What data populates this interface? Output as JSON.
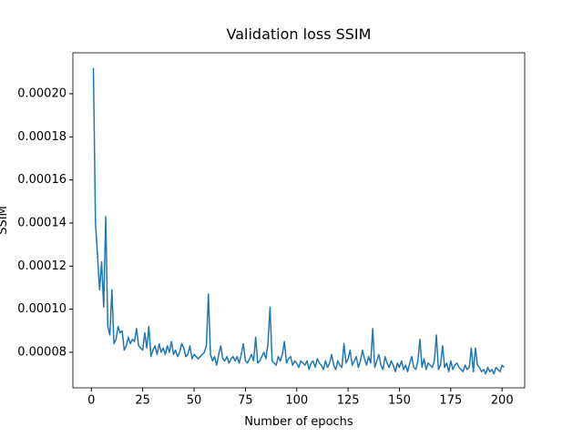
{
  "chart_data": {
    "type": "line",
    "title": "Validation loss SSIM",
    "x_label": "Number of epochs",
    "y_label": "SSIM",
    "x": [
      1,
      2,
      3,
      4,
      5,
      6,
      7,
      8,
      9,
      10,
      11,
      12,
      13,
      14,
      15,
      16,
      17,
      18,
      19,
      20,
      21,
      22,
      23,
      24,
      25,
      26,
      27,
      28,
      29,
      30,
      31,
      32,
      33,
      34,
      35,
      36,
      37,
      38,
      39,
      40,
      41,
      42,
      43,
      44,
      45,
      46,
      47,
      48,
      49,
      50,
      51,
      52,
      53,
      54,
      55,
      56,
      57,
      58,
      59,
      60,
      61,
      62,
      63,
      64,
      65,
      66,
      67,
      68,
      69,
      70,
      71,
      72,
      73,
      74,
      75,
      76,
      77,
      78,
      79,
      80,
      81,
      82,
      83,
      84,
      85,
      86,
      87,
      88,
      89,
      90,
      91,
      92,
      93,
      94,
      95,
      96,
      97,
      98,
      99,
      100,
      101,
      102,
      103,
      104,
      105,
      106,
      107,
      108,
      109,
      110,
      111,
      112,
      113,
      114,
      115,
      116,
      117,
      118,
      119,
      120,
      121,
      122,
      123,
      124,
      125,
      126,
      127,
      128,
      129,
      130,
      131,
      132,
      133,
      134,
      135,
      136,
      137,
      138,
      139,
      140,
      141,
      142,
      143,
      144,
      145,
      146,
      147,
      148,
      149,
      150,
      151,
      152,
      153,
      154,
      155,
      156,
      157,
      158,
      159,
      160,
      161,
      162,
      163,
      164,
      165,
      166,
      167,
      168,
      169,
      170,
      171,
      172,
      173,
      174,
      175,
      176,
      177,
      178,
      179,
      180,
      181,
      182,
      183,
      184,
      185,
      186,
      187,
      188,
      189,
      190,
      191,
      192,
      193,
      194,
      195,
      196,
      197,
      198,
      199,
      200,
      201
    ],
    "series": [
      {
        "color": "#1f77b4",
        "values": [
          0.000212,
          0.00014,
          0.000125,
          0.000109,
          0.000122,
          0.000101,
          0.000143,
          9.2e-05,
          8.8e-05,
          0.000109,
          8.4e-05,
          8.6e-05,
          9.2e-05,
          8.9e-05,
          9e-05,
          8.1e-05,
          8.3e-05,
          8.7e-05,
          8.4e-05,
          8.6e-05,
          8.5e-05,
          9.1e-05,
          8.3e-05,
          8.2e-05,
          8.1e-05,
          8.9e-05,
          8.2e-05,
          9.2e-05,
          7.8e-05,
          8.1e-05,
          8.3e-05,
          7.9e-05,
          8.4e-05,
          8e-05,
          8.2e-05,
          7.9e-05,
          8.3e-05,
          8e-05,
          8.5e-05,
          7.9e-05,
          8.1e-05,
          7.8e-05,
          8e-05,
          8.4e-05,
          8.2e-05,
          7.8e-05,
          7.9e-05,
          8.3e-05,
          7.7e-05,
          7.9e-05,
          7.8e-05,
          7.7e-05,
          7.8e-05,
          7.9e-05,
          8e-05,
          8.3e-05,
          0.000107,
          7.9e-05,
          7.6e-05,
          7.8e-05,
          7.4e-05,
          7.9e-05,
          8.3e-05,
          7.7e-05,
          7.6e-05,
          7.8e-05,
          7.5e-05,
          7.7e-05,
          7.8e-05,
          7.6e-05,
          7.8e-05,
          7.5e-05,
          7.9e-05,
          8.4e-05,
          7.6e-05,
          7.5e-05,
          7.7e-05,
          7.9e-05,
          7.6e-05,
          8.7e-05,
          7.5e-05,
          7.6e-05,
          7.8e-05,
          8e-05,
          7.7e-05,
          8.4e-05,
          0.000101,
          7.6e-05,
          7.5e-05,
          7.4e-05,
          7.8e-05,
          7.6e-05,
          7.9e-05,
          8.5e-05,
          7.5e-05,
          7.7e-05,
          7.8e-05,
          7.4e-05,
          7.6e-05,
          7.5e-05,
          7.3e-05,
          7.6e-05,
          7.5e-05,
          7.4e-05,
          7.6e-05,
          7.2e-05,
          7.5e-05,
          7.6e-05,
          7.3e-05,
          7.7e-05,
          7.5e-05,
          7.4e-05,
          7.2e-05,
          7.6e-05,
          7.3e-05,
          7.5e-05,
          7.9e-05,
          7.4e-05,
          7.2e-05,
          7.6e-05,
          7.4e-05,
          7.3e-05,
          8.4e-05,
          7.5e-05,
          7.7e-05,
          8.1e-05,
          7.4e-05,
          7.6e-05,
          7.8e-05,
          7.3e-05,
          7.6e-05,
          8.1e-05,
          7.7e-05,
          7.4e-05,
          7.8e-05,
          7.5e-05,
          9.1e-05,
          7.3e-05,
          7.6e-05,
          7.9e-05,
          7.4e-05,
          7.2e-05,
          7.8e-05,
          7.5e-05,
          7.3e-05,
          7.6e-05,
          7.4e-05,
          7.1e-05,
          7.5e-05,
          7.3e-05,
          7.6e-05,
          7.2e-05,
          7.4e-05,
          7.1e-05,
          7.5e-05,
          7.8e-05,
          7.3e-05,
          7.2e-05,
          7.6e-05,
          8.6e-05,
          7.3e-05,
          7.7e-05,
          7.2e-05,
          7.5e-05,
          7.4e-05,
          7.3e-05,
          7.6e-05,
          8.8e-05,
          7.2e-05,
          7.4e-05,
          8.3e-05,
          7.3e-05,
          7.5e-05,
          7.1e-05,
          7.6e-05,
          7.2e-05,
          7.4e-05,
          7.5e-05,
          7.3e-05,
          7.2e-05,
          7.1e-05,
          7.4e-05,
          7.2e-05,
          7.3e-05,
          8.2e-05,
          7.1e-05,
          8.2e-05,
          7.4e-05,
          7.3e-05,
          7.1e-05,
          7.2e-05,
          7e-05,
          7.3e-05,
          7.1e-05,
          7.2e-05,
          7e-05,
          7.3e-05,
          7.2e-05,
          7.1e-05,
          7.4e-05,
          7.3e-05
        ]
      }
    ],
    "xlim": [
      -9,
      211
    ],
    "xticks": [
      0,
      25,
      50,
      75,
      100,
      125,
      150,
      175,
      200
    ],
    "ylim": [
      6.35e-05,
      0.000219
    ],
    "yticks": [
      {
        "value": 8e-05,
        "label": "0.00008"
      },
      {
        "value": 0.0001,
        "label": "0.00010"
      },
      {
        "value": 0.00012,
        "label": "0.00012"
      },
      {
        "value": 0.00014,
        "label": "0.00014"
      },
      {
        "value": 0.00016,
        "label": "0.00016"
      },
      {
        "value": 0.00018,
        "label": "0.00018"
      },
      {
        "value": 0.0002,
        "label": "0.00020"
      }
    ],
    "grid": false
  }
}
